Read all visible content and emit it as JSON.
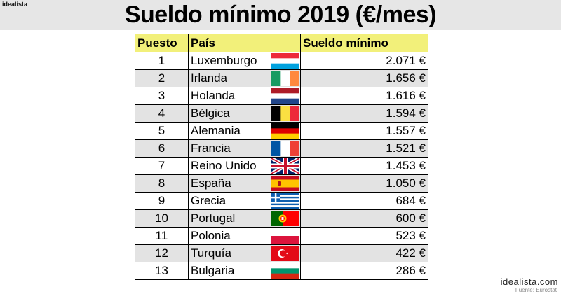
{
  "brand": "idealista",
  "title": "Sueldo mínimo 2019 (€/mes)",
  "columns": {
    "rank": "Puesto",
    "country": "País",
    "salary": "Sueldo mínimo"
  },
  "chart_data": {
    "type": "table",
    "title": "Sueldo mínimo 2019 (€/mes)",
    "columns": [
      "Puesto",
      "País",
      "Sueldo mínimo"
    ],
    "rows": [
      {
        "rank": "1",
        "country": "Luxemburgo",
        "salary": "2.071 €",
        "value": 2071,
        "flag": "luxembourg-flag-icon"
      },
      {
        "rank": "2",
        "country": "Irlanda",
        "salary": "1.656 €",
        "value": 1656,
        "flag": "ireland-flag-icon"
      },
      {
        "rank": "3",
        "country": "Holanda",
        "salary": "1.616 €",
        "value": 1616,
        "flag": "netherlands-flag-icon"
      },
      {
        "rank": "4",
        "country": "Bélgica",
        "salary": "1.594 €",
        "value": 1594,
        "flag": "belgium-flag-icon"
      },
      {
        "rank": "5",
        "country": "Alemania",
        "salary": "1.557 €",
        "value": 1557,
        "flag": "germany-flag-icon"
      },
      {
        "rank": "6",
        "country": "Francia",
        "salary": "1.521 €",
        "value": 1521,
        "flag": "france-flag-icon"
      },
      {
        "rank": "7",
        "country": "Reino Unido",
        "salary": "1.453 €",
        "value": 1453,
        "flag": "uk-flag-icon"
      },
      {
        "rank": "8",
        "country": "España",
        "salary": "1.050 €",
        "value": 1050,
        "flag": "spain-flag-icon"
      },
      {
        "rank": "9",
        "country": "Grecia",
        "salary": "684 €",
        "value": 684,
        "flag": "greece-flag-icon"
      },
      {
        "rank": "10",
        "country": "Portugal",
        "salary": "600 €",
        "value": 600,
        "flag": "portugal-flag-icon"
      },
      {
        "rank": "11",
        "country": "Polonia",
        "salary": "523 €",
        "value": 523,
        "flag": "poland-flag-icon"
      },
      {
        "rank": "12",
        "country": "Turquía",
        "salary": "422 €",
        "value": 422,
        "flag": "turkey-flag-icon"
      },
      {
        "rank": "13",
        "country": "Bulgaria",
        "salary": "286 €",
        "value": 286,
        "flag": "bulgaria-flag-icon"
      }
    ]
  },
  "colors": {
    "header_bg": "#f2f07a",
    "row_alt": "#e3e3e3",
    "top_bar": "#e6e6e6"
  },
  "footer": {
    "brand": "idealista.com",
    "source": "Fuente: Eurostat"
  }
}
